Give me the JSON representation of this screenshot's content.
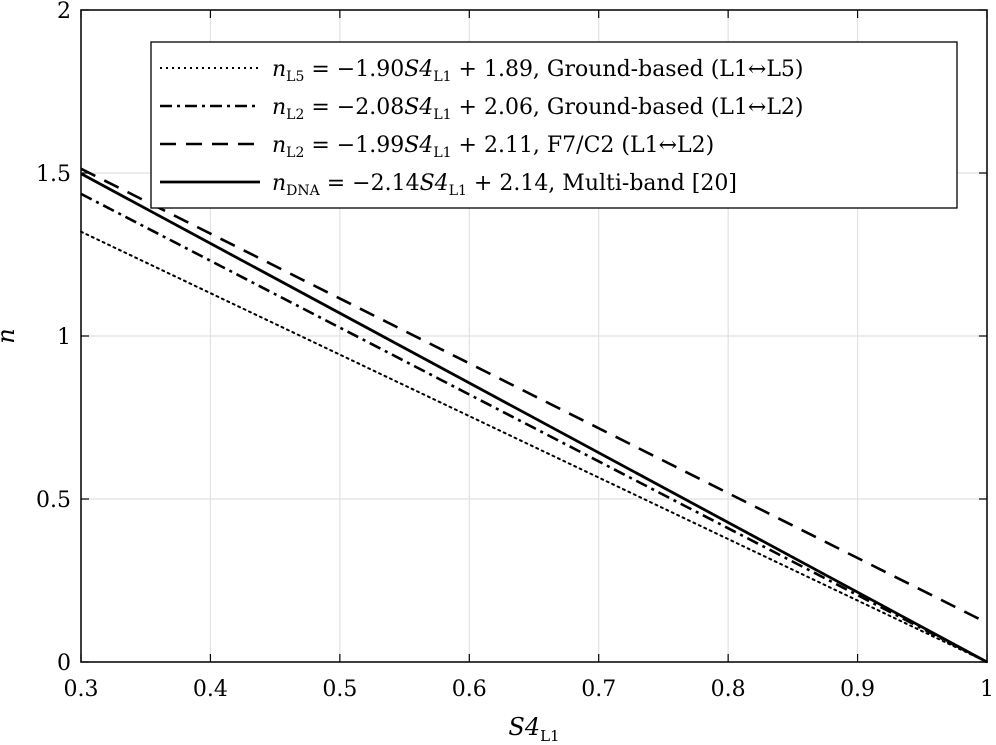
{
  "chart_data": {
    "type": "line",
    "title": "",
    "xlabel": "S4",
    "xlabel_sub": "L1",
    "ylabel": "n",
    "xlim": [
      0.3,
      1
    ],
    "ylim": [
      0,
      2
    ],
    "xticks": [
      0.3,
      0.4,
      0.5,
      0.6,
      0.7,
      0.8,
      0.9,
      1
    ],
    "xtick_labels": [
      "0.3",
      "0.4",
      "0.5",
      "0.6",
      "0.7",
      "0.8",
      "0.9",
      "1"
    ],
    "yticks": [
      0,
      0.5,
      1,
      1.5,
      2
    ],
    "ytick_labels": [
      "0",
      "0.5",
      "1",
      "1.5",
      "2"
    ],
    "grid": true,
    "legend_position": "top-right",
    "series": [
      {
        "name": "n_L5 = −1.90S4_L1 + 1.89, Ground-based (L1↔L5)",
        "legend_parts": {
          "var": "n",
          "sub": "L5",
          "eq": " = −1.90",
          "s4": "S4",
          "s4sub": "L1",
          "rest": " + 1.89, Ground-based (L1↔L5)"
        },
        "style": "dotted",
        "slope": -1.9,
        "intercept": 1.89,
        "x": [
          0.3,
          1
        ],
        "y": [
          1.32,
          0
        ]
      },
      {
        "name": "n_L2 = −2.08S4_L1 + 2.06, Ground-based (L1↔L2)",
        "legend_parts": {
          "var": "n",
          "sub": "L2",
          "eq": " = −2.08",
          "s4": "S4",
          "s4sub": "L1",
          "rest": " + 2.06, Ground-based (L1↔L2)"
        },
        "style": "dashdot",
        "slope": -2.08,
        "intercept": 2.06,
        "x": [
          0.3,
          1
        ],
        "y": [
          1.436,
          0
        ]
      },
      {
        "name": "n_L2 = −1.99S4_L1 + 2.11, F7/C2 (L1↔L2)",
        "legend_parts": {
          "var": "n",
          "sub": "L2",
          "eq": " = −1.99",
          "s4": "S4",
          "s4sub": "L1",
          "rest": " + 2.11, F7/C2 (L1↔L2)"
        },
        "style": "dashed",
        "slope": -1.99,
        "intercept": 2.11,
        "x": [
          0.3,
          1
        ],
        "y": [
          1.513,
          0.12
        ]
      },
      {
        "name": "n_DNA = −2.14S4_L1 + 2.14, Multi-band [20]",
        "legend_parts": {
          "var": "n",
          "sub": "DNA",
          "eq": " = −2.14",
          "s4": "S4",
          "s4sub": "L1",
          "rest": " + 2.14, Multi-band [20]"
        },
        "style": "solid",
        "slope": -2.14,
        "intercept": 2.14,
        "x": [
          0.3,
          1
        ],
        "y": [
          1.498,
          0
        ]
      }
    ]
  }
}
